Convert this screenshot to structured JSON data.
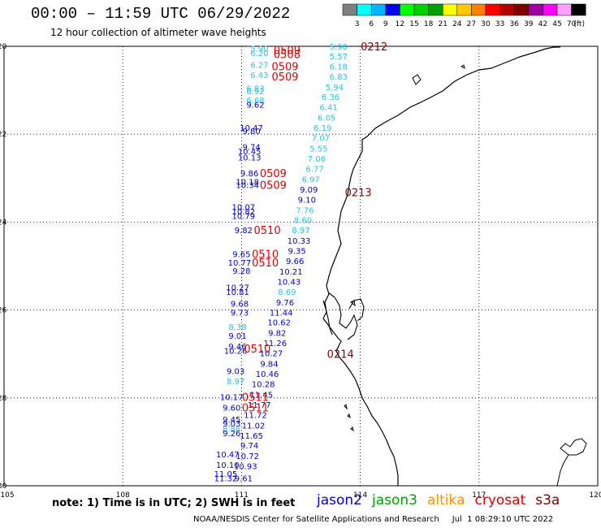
{
  "title": "00:00 – 11:59 UTC 06/29/2022",
  "subtitle": "12 hour collection of altimeter wave heights",
  "colorbar": {
    "colors": [
      "#808080",
      "#00ffff",
      "#00b4ff",
      "#0000ff",
      "#00ff00",
      "#00d200",
      "#00a000",
      "#ffff00",
      "#ffc800",
      "#ff8000",
      "#ff0000",
      "#b40000",
      "#800000",
      "#a000a0",
      "#ff00ff",
      "#ffa0ff",
      "#000000"
    ],
    "labels": [
      "3",
      "6",
      "9",
      "12",
      "15",
      "18",
      "21",
      "24",
      "27",
      "30",
      "33",
      "36",
      "39",
      "42",
      "45",
      "70",
      "(ft)"
    ]
  },
  "axes": {
    "lon_labels": [
      "105",
      "108",
      "111",
      "114",
      "117",
      "120"
    ],
    "lat_labels": [
      "-20",
      "-22",
      "-24",
      "-26",
      "-28",
      "-30"
    ]
  },
  "map_data": {
    "points": [
      {
        "v": "5.90",
        "c": "#29c4d6",
        "lon": 113.45,
        "lat": -20.0
      },
      {
        "v": "5.57",
        "c": "#29c4d6",
        "lon": 113.45,
        "lat": -20.22
      },
      {
        "v": "6.18",
        "c": "#29c4d6",
        "lon": 113.45,
        "lat": -20.45
      },
      {
        "v": "6.83",
        "c": "#29c4d6",
        "lon": 113.45,
        "lat": -20.68
      },
      {
        "v": "5.94",
        "c": "#29c4d6",
        "lon": 113.35,
        "lat": -20.92
      },
      {
        "v": "6.36",
        "c": "#29c4d6",
        "lon": 113.25,
        "lat": -21.15
      },
      {
        "v": "6.41",
        "c": "#29c4d6",
        "lon": 113.2,
        "lat": -21.38
      },
      {
        "v": "6.05",
        "c": "#29c4d6",
        "lon": 113.15,
        "lat": -21.62
      },
      {
        "v": "6.19",
        "c": "#29c4d6",
        "lon": 113.05,
        "lat": -21.85
      },
      {
        "v": "7.07",
        "c": "#29c4d6",
        "lon": 113.0,
        "lat": -22.08
      },
      {
        "v": "5.55",
        "c": "#29c4d6",
        "lon": 112.95,
        "lat": -22.32
      },
      {
        "v": "7.06",
        "c": "#29c4d6",
        "lon": 112.9,
        "lat": -22.55
      },
      {
        "v": "6.77",
        "c": "#29c4d6",
        "lon": 112.85,
        "lat": -22.78
      },
      {
        "v": "6.97",
        "c": "#29c4d6",
        "lon": 112.75,
        "lat": -23.02
      },
      {
        "v": "9.09",
        "c": "#0000c8",
        "lon": 112.7,
        "lat": -23.25
      },
      {
        "v": "9.10",
        "c": "#0000c8",
        "lon": 112.65,
        "lat": -23.48
      },
      {
        "v": "7.76",
        "c": "#29c4d6",
        "lon": 112.6,
        "lat": -23.72
      },
      {
        "v": "8.60",
        "c": "#29c4d6",
        "lon": 112.55,
        "lat": -23.95
      },
      {
        "v": "8.97",
        "c": "#29c4d6",
        "lon": 112.5,
        "lat": -24.18
      },
      {
        "v": "10.33",
        "c": "#0000c8",
        "lon": 112.45,
        "lat": -24.42
      },
      {
        "v": "9.35",
        "c": "#0000c8",
        "lon": 112.4,
        "lat": -24.65
      },
      {
        "v": "9.66",
        "c": "#0000c8",
        "lon": 112.35,
        "lat": -24.88
      },
      {
        "v": "10.21",
        "c": "#0000c8",
        "lon": 112.25,
        "lat": -25.12
      },
      {
        "v": "10.43",
        "c": "#0000c8",
        "lon": 112.2,
        "lat": -25.35
      },
      {
        "v": "8.69",
        "c": "#29c4d6",
        "lon": 112.15,
        "lat": -25.58
      },
      {
        "v": "9.76",
        "c": "#0000c8",
        "lon": 112.1,
        "lat": -25.82
      },
      {
        "v": "11.44",
        "c": "#0000c8",
        "lon": 112.0,
        "lat": -26.05
      },
      {
        "v": "10.62",
        "c": "#0000c8",
        "lon": 111.95,
        "lat": -26.28
      },
      {
        "v": "9.82",
        "c": "#0000c8",
        "lon": 111.9,
        "lat": -26.52
      },
      {
        "v": "11.26",
        "c": "#0000c8",
        "lon": 111.85,
        "lat": -26.75
      },
      {
        "v": "10.27",
        "c": "#0000c8",
        "lon": 111.75,
        "lat": -26.98
      },
      {
        "v": "9.84",
        "c": "#0000c8",
        "lon": 111.7,
        "lat": -27.22
      },
      {
        "v": "10.46",
        "c": "#0000c8",
        "lon": 111.65,
        "lat": -27.45
      },
      {
        "v": "10.28",
        "c": "#0000c8",
        "lon": 111.55,
        "lat": -27.68
      },
      {
        "v": "11.45",
        "c": "#0000c8",
        "lon": 111.5,
        "lat": -27.92
      },
      {
        "v": "11.77",
        "c": "#0000c8",
        "lon": 111.45,
        "lat": -28.15
      },
      {
        "v": "11.72",
        "c": "#0000c8",
        "lon": 111.35,
        "lat": -28.38
      },
      {
        "v": "11.02",
        "c": "#0000c8",
        "lon": 111.3,
        "lat": -28.62
      },
      {
        "v": "11.65",
        "c": "#0000c8",
        "lon": 111.25,
        "lat": -28.85
      },
      {
        "v": "9.74",
        "c": "#0000c8",
        "lon": 111.2,
        "lat": -29.08
      },
      {
        "v": "10.72",
        "c": "#0000c8",
        "lon": 111.15,
        "lat": -29.32
      },
      {
        "v": "10.93",
        "c": "#0000c8",
        "lon": 111.1,
        "lat": -29.55
      },
      {
        "v": "9.61",
        "c": "#0000c8",
        "lon": 111.05,
        "lat": -29.82
      },
      {
        "v": "5.90",
        "c": "#29c4d6",
        "lon": 111.45,
        "lat": -20.05
      },
      {
        "v": "6.20",
        "c": "#29c4d6",
        "lon": 111.45,
        "lat": -20.15
      },
      {
        "v": "6.27",
        "c": "#29c4d6",
        "lon": 111.45,
        "lat": -20.42
      },
      {
        "v": "6.43",
        "c": "#29c4d6",
        "lon": 111.45,
        "lat": -20.65
      },
      {
        "v": "6.83",
        "c": "#29c4d6",
        "lon": 111.35,
        "lat": -20.95
      },
      {
        "v": "6.92",
        "c": "#29c4d6",
        "lon": 111.35,
        "lat": -21.02
      },
      {
        "v": "6.68",
        "c": "#29c4d6",
        "lon": 111.35,
        "lat": -21.22
      },
      {
        "v": "9.62",
        "c": "#0000c8",
        "lon": 111.35,
        "lat": -21.32
      },
      {
        "v": "10.47",
        "c": "#0000c8",
        "lon": 111.25,
        "lat": -21.85
      },
      {
        "v": "9.80",
        "c": "#0000c8",
        "lon": 111.25,
        "lat": -21.92
      },
      {
        "v": "9.74",
        "c": "#0000c8",
        "lon": 111.25,
        "lat": -22.28
      },
      {
        "v": "10.45",
        "c": "#0000c8",
        "lon": 111.2,
        "lat": -22.38
      },
      {
        "v": "10.13",
        "c": "#0000c8",
        "lon": 111.2,
        "lat": -22.52
      },
      {
        "v": "9.86",
        "c": "#0000c8",
        "lon": 111.2,
        "lat": -22.88
      },
      {
        "v": "10.18",
        "c": "#0000c8",
        "lon": 111.15,
        "lat": -23.08
      },
      {
        "v": "10.34",
        "c": "#0000c8",
        "lon": 111.15,
        "lat": -23.15
      },
      {
        "v": "10.07",
        "c": "#0000c8",
        "lon": 111.05,
        "lat": -23.65
      },
      {
        "v": "10.82",
        "c": "#0000c8",
        "lon": 111.05,
        "lat": -23.75
      },
      {
        "v": "10.79",
        "c": "#0000c8",
        "lon": 111.05,
        "lat": -23.85
      },
      {
        "v": "9.82",
        "c": "#0000c8",
        "lon": 111.05,
        "lat": -24.18
      },
      {
        "v": "9.65",
        "c": "#0000c8",
        "lon": 111.0,
        "lat": -24.72
      },
      {
        "v": "10.77",
        "c": "#0000c8",
        "lon": 110.95,
        "lat": -24.92
      },
      {
        "v": "9.28",
        "c": "#0000c8",
        "lon": 111.0,
        "lat": -25.1
      },
      {
        "v": "10.27",
        "c": "#0000c8",
        "lon": 110.9,
        "lat": -25.48
      },
      {
        "v": "10.81",
        "c": "#0000c8",
        "lon": 110.9,
        "lat": -25.58
      },
      {
        "v": "9.68",
        "c": "#0000c8",
        "lon": 110.95,
        "lat": -25.85
      },
      {
        "v": "9.73",
        "c": "#0000c8",
        "lon": 110.95,
        "lat": -26.05
      },
      {
        "v": "8.38",
        "c": "#29c4d6",
        "lon": 110.9,
        "lat": -26.38
      },
      {
        "v": "9.01",
        "c": "#0000c8",
        "lon": 110.9,
        "lat": -26.58
      },
      {
        "v": "9.46",
        "c": "#0000c8",
        "lon": 110.9,
        "lat": -26.82
      },
      {
        "v": "10.26",
        "c": "#0000c8",
        "lon": 110.85,
        "lat": -26.92
      },
      {
        "v": "9.03",
        "c": "#0000c8",
        "lon": 110.85,
        "lat": -27.38
      },
      {
        "v": "8.97",
        "c": "#29c4d6",
        "lon": 110.85,
        "lat": -27.62
      },
      {
        "v": "10.17",
        "c": "#0000c8",
        "lon": 110.75,
        "lat": -27.98
      },
      {
        "v": "9.60",
        "c": "#0000c8",
        "lon": 110.75,
        "lat": -28.22
      },
      {
        "v": "9.45",
        "c": "#0000c8",
        "lon": 110.75,
        "lat": -28.48
      },
      {
        "v": "9.03",
        "c": "#0000c8",
        "lon": 110.75,
        "lat": -28.58
      },
      {
        "v": "8.86",
        "c": "#29c4d6",
        "lon": 110.75,
        "lat": -28.7
      },
      {
        "v": "9.26",
        "c": "#0000c8",
        "lon": 110.75,
        "lat": -28.8
      },
      {
        "v": "10.47",
        "c": "#0000c8",
        "lon": 110.65,
        "lat": -29.28
      },
      {
        "v": "10.10",
        "c": "#0000c8",
        "lon": 110.65,
        "lat": -29.52
      },
      {
        "v": "11.05",
        "c": "#0000c8",
        "lon": 110.6,
        "lat": -29.72
      },
      {
        "v": "11.32",
        "c": "#0000c8",
        "lon": 110.6,
        "lat": -29.82
      }
    ],
    "passes": [
      {
        "t": "0509",
        "c": "#e00000",
        "lon": 112.15,
        "lat": -20.08
      },
      {
        "t": "0508",
        "c": "#e00000",
        "lon": 112.15,
        "lat": -20.18
      },
      {
        "t": "0509",
        "c": "#e00000",
        "lon": 112.1,
        "lat": -20.45
      },
      {
        "t": "0509",
        "c": "#e00000",
        "lon": 112.1,
        "lat": -20.68
      },
      {
        "t": "0509",
        "c": "#e00000",
        "lon": 111.8,
        "lat": -22.88
      },
      {
        "t": "0509",
        "c": "#e00000",
        "lon": 111.8,
        "lat": -23.15
      },
      {
        "t": "0510",
        "c": "#e00000",
        "lon": 111.65,
        "lat": -24.18
      },
      {
        "t": "0510",
        "c": "#e00000",
        "lon": 111.6,
        "lat": -24.72
      },
      {
        "t": "0510",
        "c": "#e00000",
        "lon": 111.6,
        "lat": -24.92
      },
      {
        "t": "0510",
        "c": "#e00000",
        "lon": 111.4,
        "lat": -26.88
      },
      {
        "t": "0511",
        "c": "#e00000",
        "lon": 111.35,
        "lat": -27.98
      },
      {
        "t": "0511",
        "c": "#e00000",
        "lon": 111.35,
        "lat": -28.22
      },
      {
        "t": "0212",
        "c": "#800000",
        "lon": 114.35,
        "lat": -20.0
      },
      {
        "t": "0213",
        "c": "#800000",
        "lon": 113.95,
        "lat": -23.32
      },
      {
        "t": "0214",
        "c": "#800000",
        "lon": 113.5,
        "lat": -27.0
      }
    ]
  },
  "note": "note: 1) Time is in UTC; 2) SWH is in feet",
  "legend": [
    {
      "name": "jason2",
      "color": "#0000c8"
    },
    {
      "name": "jason3",
      "color": "#00a000"
    },
    {
      "name": "altika",
      "color": "#ff9000"
    },
    {
      "name": "cryosat",
      "color": "#e00000"
    },
    {
      "name": "s3a",
      "color": "#800000"
    }
  ],
  "footer": "NOAA/NESDIS Center for Satellite Applications and Research     Jul  1 08:29:10 UTC 2022"
}
